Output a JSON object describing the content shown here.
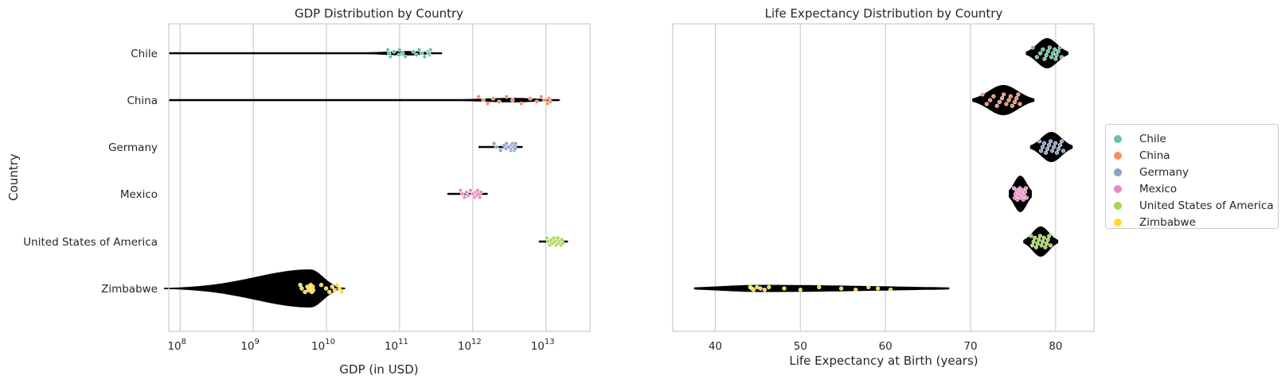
{
  "chart_data": [
    {
      "type": "violin",
      "title": "GDP Distribution by Country",
      "xlabel": "GDP (in USD)",
      "ylabel": "Country",
      "xscale": "log",
      "xlim": [
        70000000.0,
        40000000000000.0
      ],
      "x_ticks": [
        {
          "base": "10",
          "exp": "8",
          "value": 100000000.0
        },
        {
          "base": "10",
          "exp": "9",
          "value": 1000000000.0
        },
        {
          "base": "10",
          "exp": "10",
          "value": 10000000000.0
        },
        {
          "base": "10",
          "exp": "11",
          "value": 100000000000.0
        },
        {
          "base": "10",
          "exp": "12",
          "value": 1000000000000.0
        },
        {
          "base": "10",
          "exp": "13",
          "value": 10000000000000.0
        }
      ],
      "categories": [
        "Chile",
        "China",
        "Germany",
        "Mexico",
        "United States of America",
        "Zimbabwe"
      ],
      "grid": "vertical",
      "series": [
        {
          "name": "Chile",
          "color": "#66c2a5",
          "min": 70000000.0,
          "max": 380000000000.0,
          "values": [
            69000000000.0,
            72000000000.0,
            75000000000.0,
            84000000000.0,
            98000000000.0,
            100000000000.0,
            110000000000.0,
            120000000000.0,
            155000000000.0,
            170000000000.0,
            185000000000.0,
            200000000000.0,
            220000000000.0,
            245000000000.0,
            255000000000.0,
            265000000000.0,
            250000000000.0
          ]
        },
        {
          "name": "China",
          "color": "#fc8d62",
          "min": 70000000.0,
          "max": 15000000000000.0,
          "values": [
            1200000000000.0,
            1400000000000.0,
            1600000000000.0,
            1900000000000.0,
            2300000000000.0,
            2900000000000.0,
            3500000000000.0,
            4600000000000.0,
            6100000000000.0,
            7500000000000.0,
            8600000000000.0,
            9600000000000.0,
            10500000000000.0,
            11000000000000.0,
            11500000000000.0
          ]
        },
        {
          "name": "Germany",
          "color": "#8da0cb",
          "min": 1200000000000.0,
          "max": 4800000000000.0,
          "values": [
            1950000000000.0,
            2100000000000.0,
            2400000000000.0,
            2700000000000.0,
            2850000000000.0,
            2900000000000.0,
            3100000000000.0,
            3300000000000.0,
            3350000000000.0,
            3400000000000.0,
            3500000000000.0,
            3600000000000.0,
            3700000000000.0,
            3750000000000.0,
            3800000000000.0,
            3850000000000.0
          ]
        },
        {
          "name": "Mexico",
          "color": "#e78ac3",
          "min": 450000000000.0,
          "max": 1600000000000.0,
          "values": [
            680000000000.0,
            720000000000.0,
            770000000000.0,
            820000000000.0,
            870000000000.0,
            930000000000.0,
            1000000000000.0,
            1050000000000.0,
            1100000000000.0,
            1130000000000.0,
            1170000000000.0,
            1200000000000.0,
            1250000000000.0,
            1300000000000.0
          ]
        },
        {
          "name": "United States of America",
          "color": "#a6d854",
          "min": 8000000000000.0,
          "max": 20000000000000.0,
          "values": [
            10300000000000.0,
            10800000000000.0,
            11300000000000.0,
            11800000000000.0,
            12300000000000.0,
            12800000000000.0,
            13300000000000.0,
            13800000000000.0,
            14200000000000.0,
            14600000000000.0,
            15000000000000.0,
            15500000000000.0,
            16000000000000.0,
            16500000000000.0,
            17000000000000.0,
            14500000000000.0
          ]
        },
        {
          "name": "Zimbabwe",
          "color": "#ffd92f",
          "min": 70000000.0,
          "max": 18000000000.0,
          "values": [
            4400000000.0,
            4600000000.0,
            5100000000.0,
            5500000000.0,
            5700000000.0,
            6100000000.0,
            6200000000.0,
            6300000000.0,
            6500000000.0,
            6600000000.0,
            8500000000.0,
            9900000000.0,
            11000000000.0,
            12000000000.0,
            13000000000.0,
            14000000000.0,
            15000000000.0,
            16000000000.0
          ]
        }
      ]
    },
    {
      "type": "violin",
      "title": "Life Expectancy Distribution by Country",
      "xlabel": "Life Expectancy at Birth (years)",
      "xlim": [
        35,
        84.5
      ],
      "x_ticks": [
        {
          "label": "40",
          "value": 40
        },
        {
          "label": "50",
          "value": 50
        },
        {
          "label": "60",
          "value": 60
        },
        {
          "label": "70",
          "value": 70
        },
        {
          "label": "80",
          "value": 80
        }
      ],
      "categories": [
        "Chile",
        "China",
        "Germany",
        "Mexico",
        "United States of America",
        "Zimbabwe"
      ],
      "grid": "vertical",
      "series": [
        {
          "name": "Chile",
          "color": "#66c2a5",
          "min": 76.5,
          "max": 81.5,
          "values": [
            77.3,
            77.8,
            78.2,
            78.5,
            78.7,
            78.9,
            79.1,
            79.3,
            79.5,
            79.7,
            79.9,
            80.0,
            80.1,
            80.3,
            80.5,
            80.7
          ]
        },
        {
          "name": "China",
          "color": "#fc8d62",
          "min": 70.2,
          "max": 77.5,
          "values": [
            71.4,
            71.9,
            72.3,
            72.7,
            73.1,
            73.4,
            73.7,
            73.9,
            74.2,
            74.5,
            74.7,
            74.9,
            75.2,
            75.4,
            75.6,
            75.8
          ]
        },
        {
          "name": "Germany",
          "color": "#8da0cb",
          "min": 77,
          "max": 82
        },
        {
          "name": "Mexico",
          "color": "#e78ac3",
          "min": 74.5,
          "max": 77.2
        },
        {
          "name": "United States of America",
          "color": "#a6d854",
          "min": 76.2,
          "max": 80.3
        },
        {
          "name": "Zimbabwe",
          "color": "#ffd92f",
          "min": 37.5,
          "max": 67.5,
          "values": [
            44.1,
            44.3,
            44.5,
            44.9,
            45.3,
            45.8,
            46.3,
            48.1,
            50.0,
            52.2,
            54.8,
            56.5,
            58.0,
            59.1,
            60.6
          ]
        }
      ]
    }
  ],
  "legend": {
    "position": "right",
    "items": [
      {
        "label": "Chile",
        "color": "#66c2a5"
      },
      {
        "label": "China",
        "color": "#fc8d62"
      },
      {
        "label": "Germany",
        "color": "#8da0cb"
      },
      {
        "label": "Mexico",
        "color": "#e78ac3"
      },
      {
        "label": "United States of America",
        "color": "#a6d854"
      },
      {
        "label": "Zimbabwe",
        "color": "#ffd92f"
      }
    ]
  }
}
